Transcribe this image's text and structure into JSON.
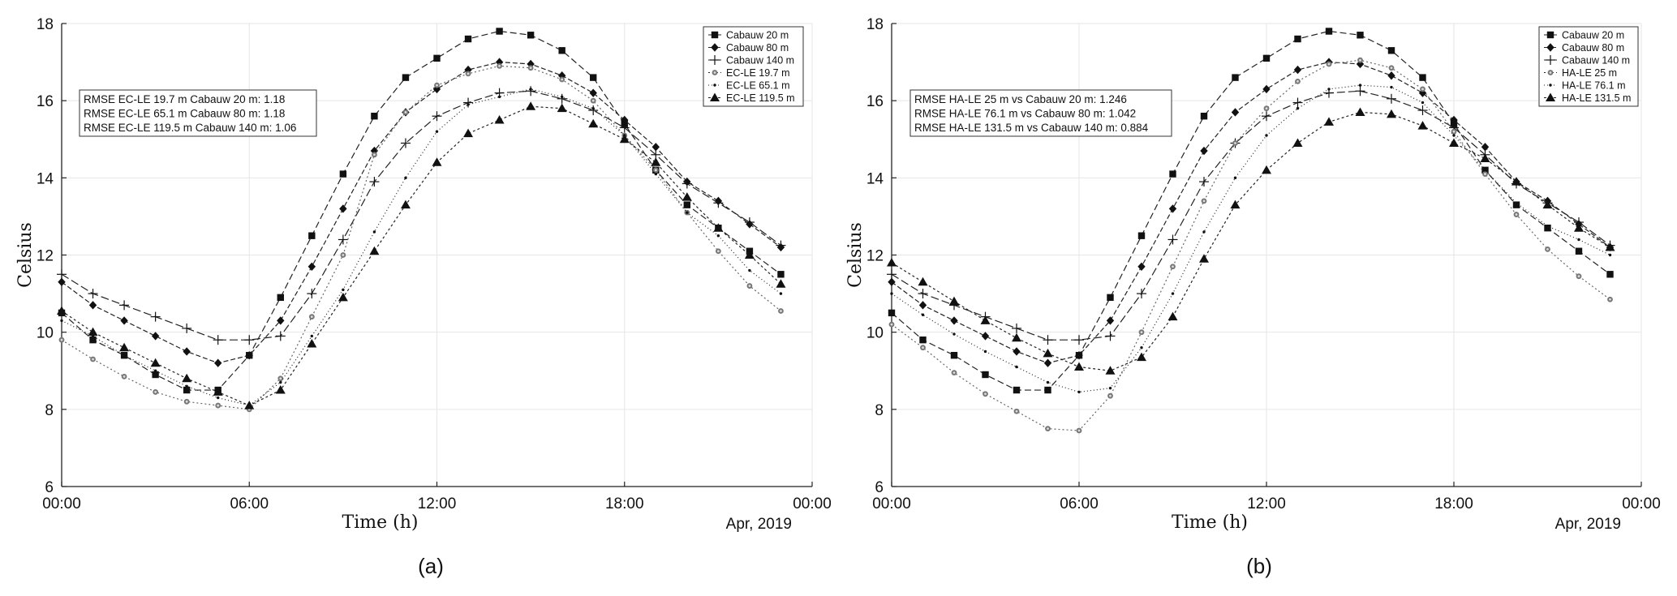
{
  "chart_data": [
    {
      "type": "line",
      "caption": "(a)",
      "xlabel": "Time (h)",
      "ylabel": "Celsius",
      "date_label": "Apr, 2019",
      "xlim": [
        0,
        24
      ],
      "ylim": [
        6,
        18
      ],
      "xticks": [
        0,
        6,
        12,
        18,
        24
      ],
      "xtick_labels": [
        "00:00",
        "06:00",
        "12:00",
        "18:00",
        "00:00"
      ],
      "yticks": [
        6,
        8,
        10,
        12,
        14,
        16,
        18
      ],
      "grid": true,
      "legend_position": "top-right",
      "annotations": [
        "RMSE EC-LE 19.7 m Cabauw 20 m: 1.18",
        "RMSE EC-LE 65.1 m Cabauw 80 m:  1.18",
        "RMSE EC-LE 119.5 m Cabauw 140 m:  1.06"
      ],
      "x": [
        0,
        1,
        2,
        3,
        4,
        5,
        6,
        7,
        8,
        9,
        10,
        11,
        12,
        13,
        14,
        15,
        16,
        17,
        18,
        19,
        20,
        21,
        22,
        23
      ],
      "series": [
        {
          "name": "Cabauw 20 m",
          "marker": "square",
          "dash": "8,4",
          "values": [
            10.5,
            9.8,
            9.4,
            8.9,
            8.5,
            8.5,
            9.4,
            10.9,
            12.5,
            14.1,
            15.6,
            16.6,
            17.1,
            17.6,
            17.8,
            17.7,
            17.3,
            16.6,
            15.4,
            14.2,
            13.3,
            12.7,
            12.1,
            11.5
          ]
        },
        {
          "name": "Cabauw 80 m",
          "marker": "diamond",
          "dash": "6,3",
          "values": [
            11.3,
            10.7,
            10.3,
            9.9,
            9.5,
            9.2,
            9.4,
            10.3,
            11.7,
            13.2,
            14.7,
            15.7,
            16.3,
            16.8,
            17.0,
            16.95,
            16.65,
            16.2,
            15.5,
            14.8,
            13.9,
            13.4,
            12.8,
            12.2
          ]
        },
        {
          "name": "Cabauw 140 m",
          "marker": "plus",
          "dash": "10,4",
          "values": [
            11.5,
            11.0,
            10.7,
            10.4,
            10.1,
            9.8,
            9.8,
            9.9,
            11.0,
            12.4,
            13.9,
            14.9,
            15.6,
            15.95,
            16.2,
            16.25,
            16.05,
            15.75,
            15.3,
            14.6,
            13.85,
            13.35,
            12.85,
            12.25
          ]
        },
        {
          "name": "EC-LE 19.7 m",
          "marker": "asterisk",
          "dash": "2,3",
          "values": [
            9.8,
            9.3,
            8.85,
            8.45,
            8.2,
            8.1,
            8.0,
            8.8,
            10.4,
            12.0,
            14.6,
            15.7,
            16.4,
            16.7,
            16.9,
            16.85,
            16.55,
            16.0,
            15.1,
            14.2,
            13.1,
            12.1,
            11.2,
            10.55
          ]
        },
        {
          "name": "EC-LE 65.1 m",
          "marker": "dot",
          "dash": "1,3",
          "values": [
            10.3,
            9.9,
            9.4,
            9.0,
            8.6,
            8.3,
            8.1,
            8.7,
            9.9,
            11.1,
            12.6,
            14.0,
            15.2,
            15.9,
            16.1,
            16.3,
            16.1,
            15.8,
            15.1,
            14.1,
            13.1,
            12.5,
            11.6,
            11.0
          ]
        },
        {
          "name": "EC-LE 119.5 m",
          "marker": "triangle",
          "dash": "3,3",
          "values": [
            10.55,
            10.0,
            9.6,
            9.2,
            8.8,
            8.45,
            8.1,
            8.5,
            9.7,
            10.9,
            12.1,
            13.3,
            14.4,
            15.15,
            15.5,
            15.85,
            15.8,
            15.4,
            15.0,
            14.4,
            13.5,
            12.7,
            12.0,
            11.25
          ]
        }
      ]
    },
    {
      "type": "line",
      "caption": "(b)",
      "xlabel": "Time (h)",
      "ylabel": "Celsius",
      "date_label": "Apr, 2019",
      "xlim": [
        0,
        24
      ],
      "ylim": [
        6,
        18
      ],
      "xticks": [
        0,
        6,
        12,
        18,
        24
      ],
      "xtick_labels": [
        "00:00",
        "06:00",
        "12:00",
        "18:00",
        "00:00"
      ],
      "yticks": [
        6,
        8,
        10,
        12,
        14,
        16,
        18
      ],
      "grid": true,
      "legend_position": "top-right",
      "annotations": [
        "RMSE HA-LE 25 m vs Cabauw 20 m: 1.246",
        "RMSE HA-LE 76.1 m vs Cabauw 80 m:  1.042",
        "RMSE HA-LE 131.5 m vs Cabauw 140 m:  0.884"
      ],
      "x": [
        0,
        1,
        2,
        3,
        4,
        5,
        6,
        7,
        8,
        9,
        10,
        11,
        12,
        13,
        14,
        15,
        16,
        17,
        18,
        19,
        20,
        21,
        22,
        23
      ],
      "series": [
        {
          "name": "Cabauw 20 m",
          "marker": "square",
          "dash": "8,4",
          "values": [
            10.5,
            9.8,
            9.4,
            8.9,
            8.5,
            8.5,
            9.4,
            10.9,
            12.5,
            14.1,
            15.6,
            16.6,
            17.1,
            17.6,
            17.8,
            17.7,
            17.3,
            16.6,
            15.4,
            14.2,
            13.3,
            12.7,
            12.1,
            11.5
          ]
        },
        {
          "name": "Cabauw 80 m",
          "marker": "diamond",
          "dash": "6,3",
          "values": [
            11.3,
            10.7,
            10.3,
            9.9,
            9.5,
            9.2,
            9.4,
            10.3,
            11.7,
            13.2,
            14.7,
            15.7,
            16.3,
            16.8,
            17.0,
            16.95,
            16.65,
            16.2,
            15.5,
            14.8,
            13.9,
            13.4,
            12.8,
            12.2
          ]
        },
        {
          "name": "Cabauw 140 m",
          "marker": "plus",
          "dash": "10,4",
          "values": [
            11.5,
            11.0,
            10.7,
            10.4,
            10.1,
            9.8,
            9.8,
            9.9,
            11.0,
            12.4,
            13.9,
            14.9,
            15.6,
            15.95,
            16.2,
            16.25,
            16.05,
            15.75,
            15.3,
            14.6,
            13.85,
            13.35,
            12.85,
            12.25
          ]
        },
        {
          "name": "HA-LE 25 m",
          "marker": "asterisk",
          "dash": "2,3",
          "values": [
            10.2,
            9.6,
            8.95,
            8.4,
            7.95,
            7.5,
            7.45,
            8.35,
            10.0,
            11.7,
            13.4,
            14.9,
            15.8,
            16.5,
            16.95,
            17.05,
            16.85,
            16.3,
            15.2,
            14.1,
            13.05,
            12.15,
            11.45,
            10.85
          ]
        },
        {
          "name": "HA-LE 76.1 m",
          "marker": "dot",
          "dash": "1,3",
          "values": [
            11.0,
            10.45,
            9.95,
            9.5,
            9.1,
            8.7,
            8.45,
            8.55,
            9.6,
            11.0,
            12.6,
            14.0,
            15.1,
            15.8,
            16.3,
            16.4,
            16.35,
            15.95,
            15.1,
            14.2,
            13.35,
            12.75,
            12.4,
            12.0
          ]
        },
        {
          "name": "HA-LE 131.5 m",
          "marker": "triangle",
          "dash": "3,3",
          "values": [
            11.8,
            11.3,
            10.8,
            10.3,
            9.85,
            9.45,
            9.1,
            9.0,
            9.35,
            10.4,
            11.9,
            13.3,
            14.2,
            14.9,
            15.45,
            15.7,
            15.65,
            15.35,
            14.9,
            14.5,
            13.9,
            13.3,
            12.7,
            12.2
          ]
        }
      ]
    }
  ]
}
